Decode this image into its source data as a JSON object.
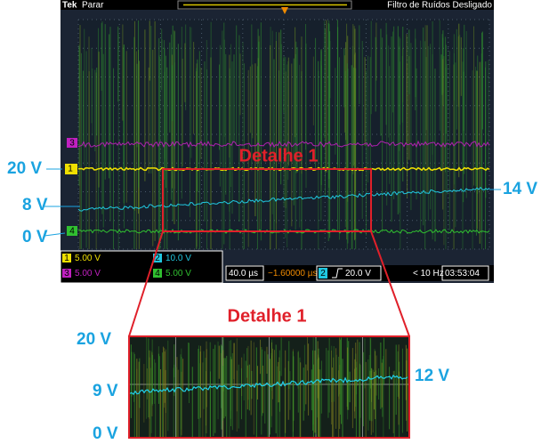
{
  "header": {
    "brand": "Tek",
    "status": "Parar",
    "filter": "Filtro de Ruídos Desligado"
  },
  "channels": [
    {
      "number": "1",
      "scale": "5.00 V"
    },
    {
      "number": "2",
      "scale": "10.0 V"
    },
    {
      "number": "3",
      "scale": "5.00 V"
    },
    {
      "number": "4",
      "scale": "5.00 V"
    }
  ],
  "timebase": {
    "scale": "40.0 µs",
    "position": "−1.60000 µs",
    "trigger_channel": "2",
    "trigger_level": "20.0 V",
    "frequency": "< 10 Hz",
    "time": "03:53:04"
  },
  "annotations": {
    "detail_label": "Detalhe 1",
    "left_labels": [
      "20 V",
      "8 V",
      "0 V"
    ],
    "right_label": "14 V"
  },
  "detail": {
    "title": "Detalhe 1",
    "left_labels": [
      "20 V",
      "9 V",
      "0 V"
    ],
    "right_label": "12 V"
  }
}
